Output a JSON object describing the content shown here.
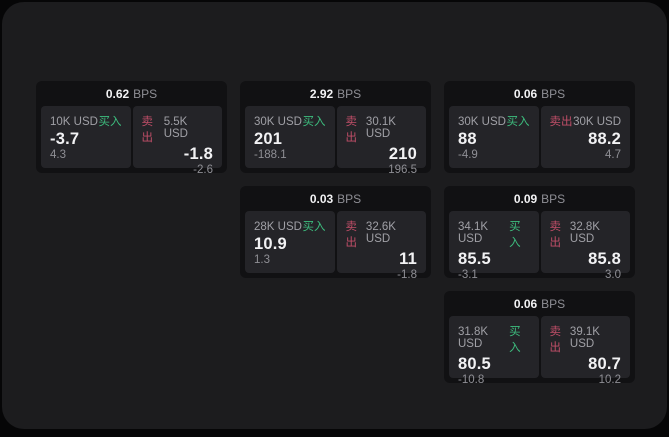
{
  "colors": {
    "page_bg": "#060607",
    "container_bg": "#1c1c1e",
    "card_bg": "#111113",
    "panel_bg": "#242428",
    "text_primary": "#f2f2f4",
    "text_secondary": "#a0a0a6",
    "text_muted": "#8f8f95",
    "buy_green": "#3dbd7e",
    "sell_red": "#c04e68"
  },
  "labels": {
    "bps": "BPS",
    "buy": "买入",
    "sell": "卖出"
  },
  "cards": [
    {
      "row": 1,
      "col": 1,
      "bps": "0.62",
      "buy": {
        "notional": "10K USD",
        "value": "-3.7",
        "sub": "4.3"
      },
      "sell": {
        "notional": "5.5K USD",
        "value": "-1.8",
        "sub": "-2.6"
      }
    },
    {
      "row": 1,
      "col": 2,
      "bps": "2.92",
      "buy": {
        "notional": "30K USD",
        "value": "201",
        "sub": "-188.1"
      },
      "sell": {
        "notional": "30.1K USD",
        "value": "210",
        "sub": "196.5"
      }
    },
    {
      "row": 1,
      "col": 3,
      "bps": "0.06",
      "buy": {
        "notional": "30K USD",
        "value": "88",
        "sub": "-4.9"
      },
      "sell": {
        "notional": "30K USD",
        "value": "88.2",
        "sub": "4.7"
      }
    },
    {
      "row": 2,
      "col": 2,
      "bps": "0.03",
      "buy": {
        "notional": "28K USD",
        "value": "10.9",
        "sub": "1.3"
      },
      "sell": {
        "notional": "32.6K USD",
        "value": "11",
        "sub": "-1.8"
      }
    },
    {
      "row": 2,
      "col": 3,
      "bps": "0.09",
      "buy": {
        "notional": "34.1K USD",
        "value": "85.5",
        "sub": "-3.1"
      },
      "sell": {
        "notional": "32.8K USD",
        "value": "85.8",
        "sub": "3.0"
      }
    },
    {
      "row": 3,
      "col": 3,
      "bps": "0.06",
      "buy": {
        "notional": "31.8K USD",
        "value": "80.5",
        "sub": "-10.8"
      },
      "sell": {
        "notional": "39.1K USD",
        "value": "80.7",
        "sub": "10.2"
      }
    }
  ]
}
